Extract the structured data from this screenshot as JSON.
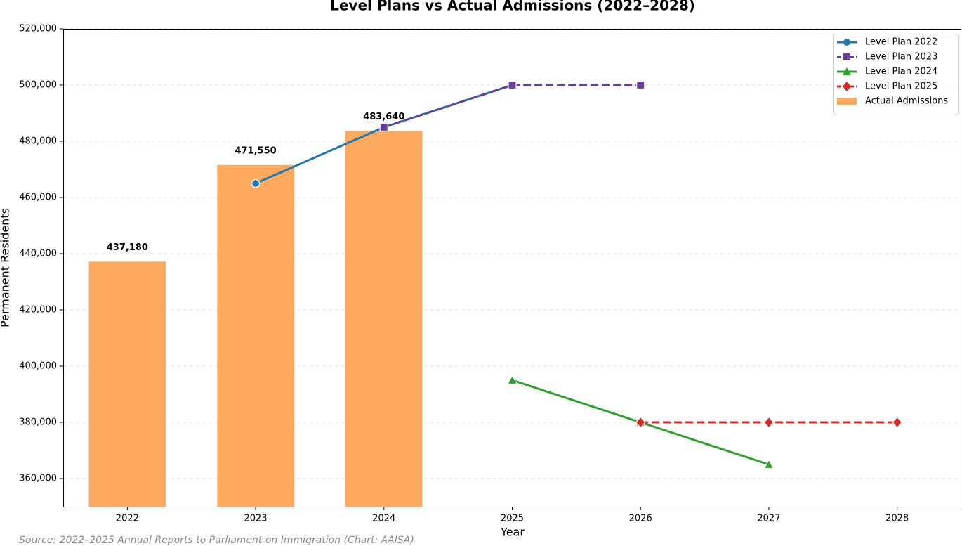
{
  "chart_data": {
    "type": "combo",
    "title": "Level Plans vs Actual Admissions (2022–2028)",
    "x_label": "Year",
    "y_label": "Permanent Residents",
    "source": "Source: 2022–2025 Annual Reports to Parliament on Immigration (Chart: AAISA)",
    "xlim": [
      2021.5,
      2028.5
    ],
    "xticks": [
      2022,
      2023,
      2024,
      2025,
      2026,
      2027,
      2028
    ],
    "ylim": [
      350000,
      520000
    ],
    "yticks": [
      {
        "value": 360000,
        "label": "360,000"
      },
      {
        "value": 380000,
        "label": "380,000"
      },
      {
        "value": 400000,
        "label": "400,000"
      },
      {
        "value": 420000,
        "label": "420,000"
      },
      {
        "value": 440000,
        "label": "440,000"
      },
      {
        "value": 460000,
        "label": "460,000"
      },
      {
        "value": 480000,
        "label": "480,000"
      },
      {
        "value": 500000,
        "label": "500,000"
      },
      {
        "value": 520000,
        "label": "520,000"
      }
    ],
    "grid": true,
    "legend": "upper right",
    "series": [
      {
        "name": "Level Plan 2022",
        "type": "line",
        "color": "#1f77b4",
        "linestyle": "solid",
        "marker": "circle",
        "x": [
          2023,
          2024,
          2025
        ],
        "values": [
          465000,
          485000,
          500000
        ]
      },
      {
        "name": "Level Plan 2023",
        "type": "line",
        "color": "#6a3d9a",
        "linestyle": "dashed",
        "marker": "square",
        "x": [
          2024,
          2025,
          2026
        ],
        "values": [
          485000,
          500000,
          500000
        ]
      },
      {
        "name": "Level Plan 2024",
        "type": "line",
        "color": "#2ca02c",
        "linestyle": "solid",
        "marker": "triangle",
        "x": [
          2025,
          2026,
          2027
        ],
        "values": [
          395000,
          380000,
          365000
        ]
      },
      {
        "name": "Level Plan 2025",
        "type": "line",
        "color": "#d62728",
        "linestyle": "dashed",
        "marker": "diamond",
        "x": [
          2026,
          2027,
          2028
        ],
        "values": [
          380000,
          380000,
          380000
        ]
      },
      {
        "name": "Actual Admissions",
        "type": "bar",
        "color": "#fdaa5f",
        "x": [
          2022,
          2023,
          2024
        ],
        "values": [
          437180,
          471550,
          483640
        ],
        "value_labels": [
          "437,180",
          "471,550",
          "483,640"
        ]
      }
    ]
  }
}
